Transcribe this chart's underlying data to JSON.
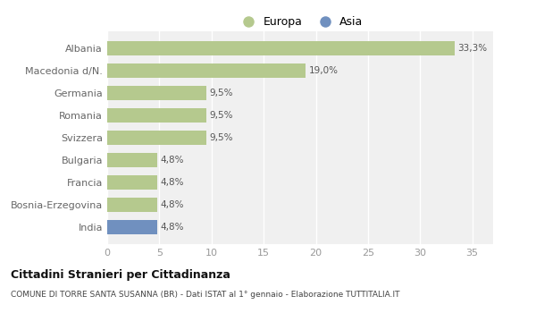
{
  "categories": [
    "Albania",
    "Macedonia d/N.",
    "Germania",
    "Romania",
    "Svizzera",
    "Bulgaria",
    "Francia",
    "Bosnia-Erzegovina",
    "India"
  ],
  "values": [
    33.3,
    19.0,
    9.5,
    9.5,
    9.5,
    4.8,
    4.8,
    4.8,
    4.8
  ],
  "labels": [
    "33,3%",
    "19,0%",
    "9,5%",
    "9,5%",
    "9,5%",
    "4,8%",
    "4,8%",
    "4,8%",
    "4,8%"
  ],
  "colors": [
    "#b5c98e",
    "#b5c98e",
    "#b5c98e",
    "#b5c98e",
    "#b5c98e",
    "#b5c98e",
    "#b5c98e",
    "#b5c98e",
    "#7090bf"
  ],
  "europa_color": "#b5c98e",
  "asia_color": "#7090bf",
  "xlim": [
    0,
    37
  ],
  "xticks": [
    0,
    5,
    10,
    15,
    20,
    25,
    30,
    35
  ],
  "title1": "Cittadini Stranieri per Cittadinanza",
  "title2": "COMUNE DI TORRE SANTA SUSANNA (BR) - Dati ISTAT al 1° gennaio - Elaborazione TUTTITALIA.IT",
  "bg_color": "#ffffff",
  "plot_bg_color": "#f0f0f0",
  "grid_color": "#ffffff",
  "legend_europa": "Europa",
  "legend_asia": "Asia",
  "label_color": "#555555",
  "ytick_color": "#666666",
  "xtick_color": "#999999"
}
